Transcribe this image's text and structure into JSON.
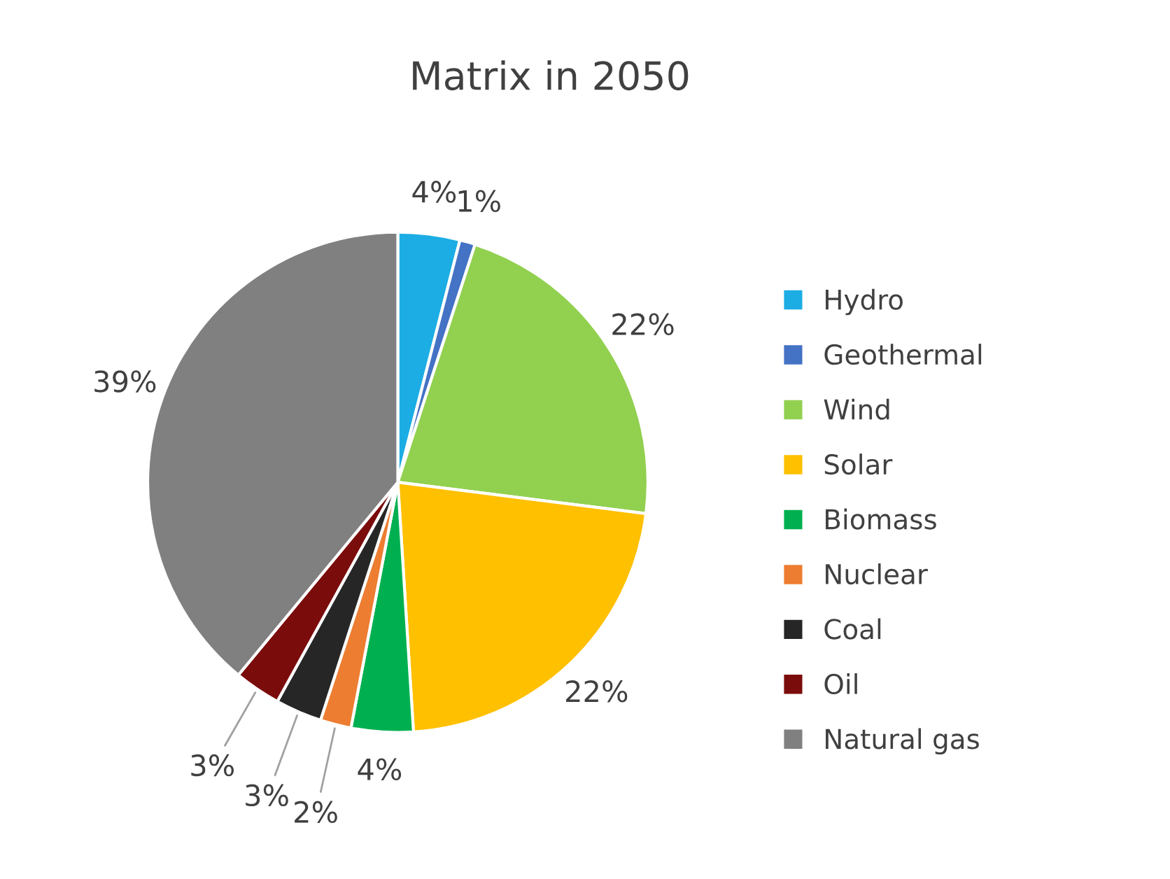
{
  "chart_data": {
    "type": "pie",
    "title": "Matrix in 2050",
    "categories": [
      "Hydro",
      "Geothermal",
      "Wind",
      "Solar",
      "Biomass",
      "Nuclear",
      "Coal",
      "Oil",
      "Natural gas"
    ],
    "values": [
      4,
      1,
      22,
      22,
      4,
      2,
      3,
      3,
      39
    ],
    "colors": [
      "#1cade4",
      "#4472c4",
      "#92d050",
      "#ffc000",
      "#00b050",
      "#ed7d31",
      "#262626",
      "#7b0c0c",
      "#808080"
    ],
    "value_labels": [
      "4%",
      "1%",
      "22%",
      "22%",
      "4%",
      "2%",
      "3%",
      "3%",
      "39%"
    ],
    "legend": "right"
  }
}
